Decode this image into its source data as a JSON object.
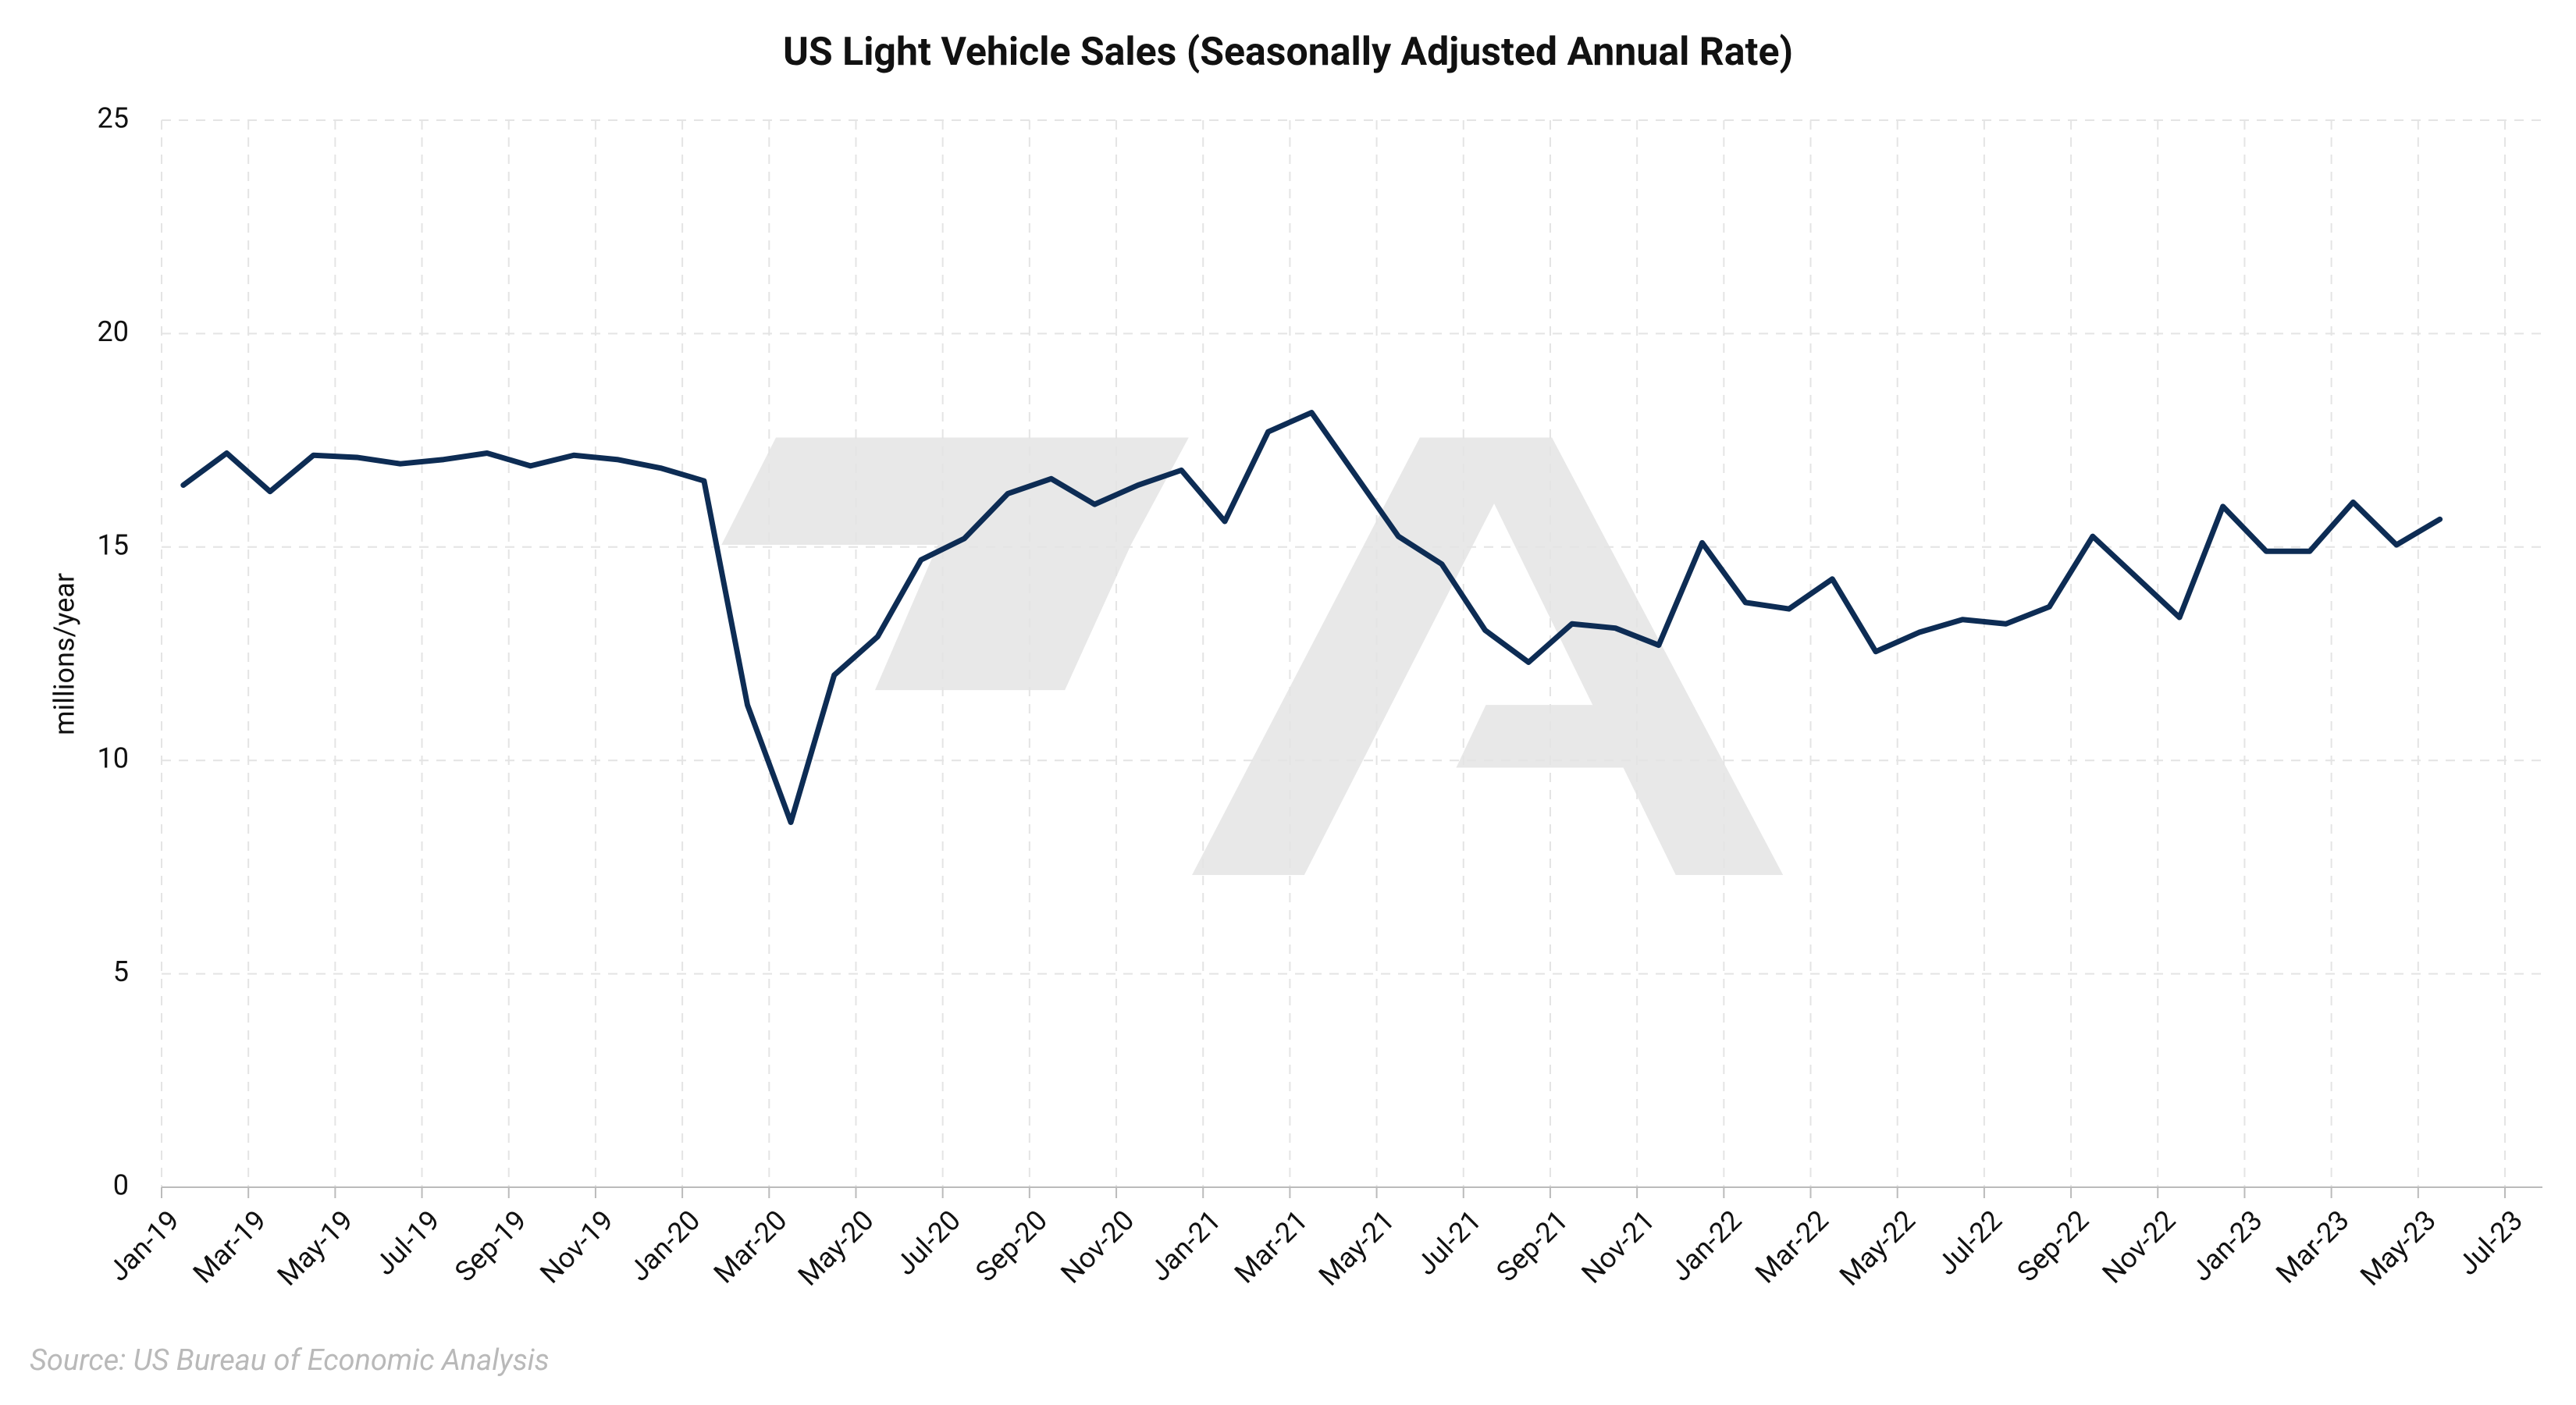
{
  "chart_data": {
    "type": "line",
    "title": "US Light Vehicle Sales (Seasonally Adjusted Annual Rate)",
    "y_label": "millions/year",
    "source": "Source: US Bureau of Economic Analysis",
    "x": [
      "Jan-19",
      "Feb-19",
      "Mar-19",
      "Apr-19",
      "May-19",
      "Jun-19",
      "Jul-19",
      "Aug-19",
      "Sep-19",
      "Oct-19",
      "Nov-19",
      "Dec-19",
      "Jan-20",
      "Feb-20",
      "Mar-20",
      "Apr-20",
      "May-20",
      "Jun-20",
      "Jul-20",
      "Aug-20",
      "Sep-20",
      "Oct-20",
      "Nov-20",
      "Dec-20",
      "Jan-21",
      "Feb-21",
      "Mar-21",
      "Apr-21",
      "May-21",
      "Jun-21",
      "Jul-21",
      "Aug-21",
      "Sep-21",
      "Oct-21",
      "Nov-21",
      "Dec-21",
      "Jan-22",
      "Feb-22",
      "Mar-22",
      "Apr-22",
      "May-22",
      "Jun-22",
      "Jul-22",
      "Aug-22",
      "Sep-22",
      "Oct-22",
      "Nov-22",
      "Dec-22",
      "Jan-23",
      "Feb-23",
      "Mar-23",
      "Apr-23",
      "May-23"
    ],
    "series": [
      {
        "name": "Light vehicle sales",
        "color": "#0d2c54",
        "values": [
          16.45,
          17.2,
          16.3,
          17.15,
          17.1,
          16.95,
          17.05,
          17.2,
          16.9,
          17.15,
          17.05,
          16.85,
          16.55,
          11.3,
          8.55,
          12.0,
          12.9,
          14.7,
          15.2,
          16.25,
          16.6,
          16.0,
          16.45,
          16.8,
          15.6,
          17.7,
          18.15,
          16.7,
          15.25,
          14.6,
          13.05,
          12.3,
          13.2,
          13.1,
          12.7,
          15.1,
          13.7,
          13.55,
          14.25,
          12.55,
          13.0,
          13.3,
          13.2,
          13.6,
          15.25,
          14.3,
          13.35,
          15.95,
          14.9,
          14.9,
          16.05,
          15.05,
          15.65
        ]
      }
    ],
    "xlim": [
      0,
      54
    ],
    "xticks": [
      {
        "value": 0,
        "label": "Jan-19"
      },
      {
        "value": 2,
        "label": "Mar-19"
      },
      {
        "value": 4,
        "label": "May-19"
      },
      {
        "value": 6,
        "label": "Jul-19"
      },
      {
        "value": 8,
        "label": "Sep-19"
      },
      {
        "value": 10,
        "label": "Nov-19"
      },
      {
        "value": 12,
        "label": "Jan-20"
      },
      {
        "value": 14,
        "label": "Mar-20"
      },
      {
        "value": 16,
        "label": "May-20"
      },
      {
        "value": 18,
        "label": "Jul-20"
      },
      {
        "value": 20,
        "label": "Sep-20"
      },
      {
        "value": 22,
        "label": "Nov-20"
      },
      {
        "value": 24,
        "label": "Jan-21"
      },
      {
        "value": 26,
        "label": "Mar-21"
      },
      {
        "value": 28,
        "label": "May-21"
      },
      {
        "value": 30,
        "label": "Jul-21"
      },
      {
        "value": 32,
        "label": "Sep-21"
      },
      {
        "value": 34,
        "label": "Nov-21"
      },
      {
        "value": 36,
        "label": "Jan-22"
      },
      {
        "value": 38,
        "label": "Mar-22"
      },
      {
        "value": 40,
        "label": "May-22"
      },
      {
        "value": 42,
        "label": "Jul-22"
      },
      {
        "value": 44,
        "label": "Sep-22"
      },
      {
        "value": 46,
        "label": "Nov-22"
      },
      {
        "value": 48,
        "label": "Jan-23"
      },
      {
        "value": 50,
        "label": "Mar-23"
      },
      {
        "value": 52,
        "label": "May-23"
      },
      {
        "value": 54,
        "label": "Jul-23"
      }
    ],
    "ylim": [
      0,
      25
    ],
    "yticks": [
      0,
      5,
      10,
      15,
      20,
      25
    ],
    "grid": true
  }
}
